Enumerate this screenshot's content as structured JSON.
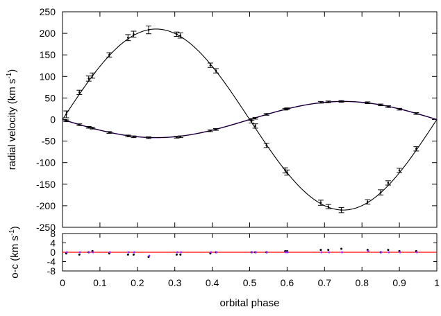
{
  "chart_data": [
    {
      "type": "line",
      "panel": "main",
      "ylabel": "radial velocity (km s",
      "ylabel_sup": "-1",
      "ylabel_close": ")",
      "xlim": [
        0,
        1
      ],
      "ylim": [
        -250,
        250
      ],
      "yticks": [
        "250",
        "200",
        "150",
        "100",
        "50",
        "0",
        "-50",
        "-100",
        "-150",
        "-200",
        "-250"
      ],
      "grid": false,
      "legend": "none",
      "series": [
        {
          "model_K": 210,
          "color": "#000000",
          "points_x": [
            0.01,
            0.045,
            0.07,
            0.08,
            0.125,
            0.175,
            0.19,
            0.23,
            0.305,
            0.315,
            0.395,
            0.41,
            0.505,
            0.515,
            0.545,
            0.595,
            0.6,
            0.69,
            0.71,
            0.745,
            0.815,
            0.85,
            0.87,
            0.9,
            0.945
          ],
          "points_y": [
            12,
            63,
            95,
            102,
            150,
            190,
            198,
            208,
            198,
            195,
            126,
            113,
            -3,
            -15,
            -60,
            -118,
            -123,
            -193,
            -202,
            -210,
            -191,
            -169,
            -147,
            -118,
            -68
          ],
          "errors": [
            8,
            5,
            6,
            6,
            5,
            7,
            7,
            9,
            5,
            6,
            5,
            5,
            5,
            5,
            5,
            6,
            6,
            6,
            5,
            6,
            5,
            6,
            5,
            5,
            5
          ]
        },
        {
          "model_K": 42,
          "color": "#000000",
          "model_color": "#9b30ff",
          "points_x": [
            0.01,
            0.045,
            0.07,
            0.08,
            0.125,
            0.175,
            0.19,
            0.23,
            0.305,
            0.315,
            0.395,
            0.41,
            0.505,
            0.515,
            0.545,
            0.595,
            0.6,
            0.69,
            0.71,
            0.745,
            0.815,
            0.85,
            0.87,
            0.9,
            0.945
          ],
          "points_y": [
            -3,
            -12,
            -18,
            -20,
            -30,
            -38,
            -40,
            -42,
            -41,
            -40,
            -26,
            -23,
            0,
            3,
            12,
            24,
            25,
            40,
            41,
            42,
            39,
            34,
            30,
            24,
            14
          ],
          "errors": [
            2,
            2,
            2,
            2,
            2,
            2,
            2,
            2,
            2,
            2,
            2,
            2,
            2,
            2,
            2,
            2,
            2,
            2,
            2,
            2,
            2,
            2,
            2,
            2,
            2
          ]
        }
      ]
    },
    {
      "type": "scatter",
      "panel": "residuals",
      "xlabel": "orbital phase",
      "ylabel": "o-c (km s",
      "ylabel_sup": "-1",
      "ylabel_close": ")",
      "xlim": [
        0,
        1
      ],
      "ylim": [
        -8,
        8
      ],
      "xticks": [
        "0",
        "0.1",
        "0.2",
        "0.3",
        "0.4",
        "0.5",
        "0.6",
        "0.7",
        "0.8",
        "0.9",
        "1"
      ],
      "yticks": [
        "8",
        "4",
        "0",
        "-4",
        "-8"
      ],
      "zero_line_color": "#ff0000",
      "series": [
        {
          "color": "#000000",
          "x": [
            0.01,
            0.045,
            0.07,
            0.08,
            0.125,
            0.175,
            0.19,
            0.23,
            0.305,
            0.315,
            0.395,
            0.41,
            0.505,
            0.515,
            0.545,
            0.595,
            0.6,
            0.69,
            0.71,
            0.745,
            0.815,
            0.85,
            0.87,
            0.9,
            0.945
          ],
          "y": [
            -0.5,
            -1,
            0,
            0.5,
            -0.5,
            -1,
            -1,
            -2,
            -1,
            -1,
            -0.5,
            0,
            0,
            0,
            0,
            0.5,
            0.5,
            1,
            1,
            1.5,
            1,
            0,
            1,
            0.5,
            0.5
          ]
        },
        {
          "color": "#9b30ff",
          "x": [
            0.01,
            0.045,
            0.07,
            0.08,
            0.125,
            0.175,
            0.19,
            0.23,
            0.305,
            0.315,
            0.395,
            0.41,
            0.505,
            0.515,
            0.545,
            0.595,
            0.6,
            0.69,
            0.71,
            0.745,
            0.815,
            0.85,
            0.87,
            0.9,
            0.945
          ],
          "y": [
            0,
            0,
            0,
            0,
            0,
            0,
            0,
            -1.5,
            0,
            0,
            0,
            0,
            0,
            0,
            0,
            0,
            0,
            0,
            0,
            0,
            0.5,
            0,
            0,
            0,
            0
          ]
        }
      ]
    }
  ]
}
